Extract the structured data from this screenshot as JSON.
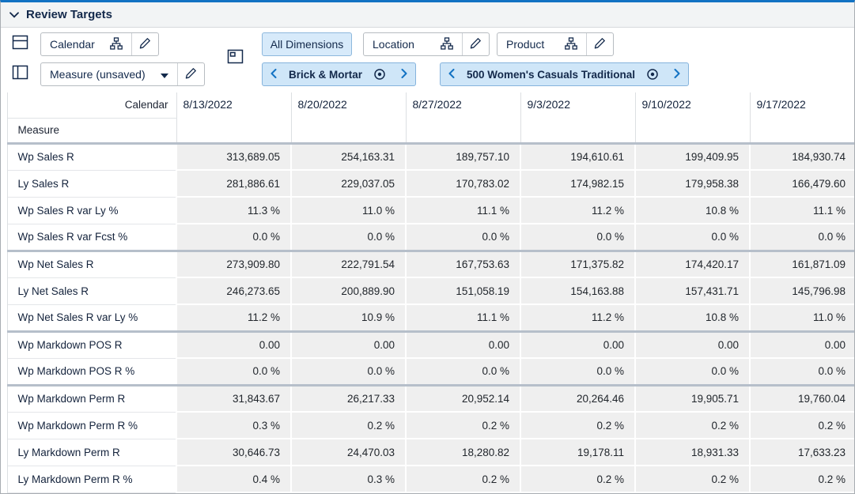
{
  "titlebar": {
    "title": "Review Targets"
  },
  "toolbar": {
    "calendar_label": "Calendar",
    "measure_label": "Measure (unsaved)",
    "all_dimensions_label": "All Dimensions",
    "location_label": "Location",
    "product_label": "Product"
  },
  "nav": {
    "location_context": "Brick & Mortar",
    "product_context": "500 Women's Casuals Traditional"
  },
  "grid": {
    "column_dimension": "Calendar",
    "row_dimension": "Measure",
    "columns": [
      "8/13/2022",
      "8/20/2022",
      "8/27/2022",
      "9/3/2022",
      "9/10/2022",
      "9/17/2022"
    ],
    "rows": [
      {
        "label": "Wp Sales R",
        "sep": false,
        "values": [
          "313,689.05",
          "254,163.31",
          "189,757.10",
          "194,610.61",
          "199,409.95",
          "184,930.74"
        ]
      },
      {
        "label": "Ly Sales R",
        "sep": false,
        "values": [
          "281,886.61",
          "229,037.05",
          "170,783.02",
          "174,982.15",
          "179,958.38",
          "166,479.60"
        ]
      },
      {
        "label": "Wp Sales R var Ly %",
        "sep": false,
        "values": [
          "11.3 %",
          "11.0 %",
          "11.1 %",
          "11.2 %",
          "10.8 %",
          "11.1 %"
        ]
      },
      {
        "label": "Wp Sales R var Fcst %",
        "sep": false,
        "values": [
          "0.0 %",
          "0.0 %",
          "0.0 %",
          "0.0 %",
          "0.0 %",
          "0.0 %"
        ]
      },
      {
        "label": "Wp Net Sales R",
        "sep": true,
        "values": [
          "273,909.80",
          "222,791.54",
          "167,753.63",
          "171,375.82",
          "174,420.17",
          "161,871.09"
        ]
      },
      {
        "label": "Ly Net Sales R",
        "sep": false,
        "values": [
          "246,273.65",
          "200,889.90",
          "151,058.19",
          "154,163.88",
          "157,431.71",
          "145,796.98"
        ]
      },
      {
        "label": "Wp Net Sales R var Ly %",
        "sep": false,
        "values": [
          "11.2 %",
          "10.9 %",
          "11.1 %",
          "11.2 %",
          "10.8 %",
          "11.0 %"
        ]
      },
      {
        "label": "Wp Markdown POS R",
        "sep": true,
        "values": [
          "0.00",
          "0.00",
          "0.00",
          "0.00",
          "0.00",
          "0.00"
        ]
      },
      {
        "label": "Wp Markdown POS R %",
        "sep": false,
        "values": [
          "0.0 %",
          "0.0 %",
          "0.0 %",
          "0.0 %",
          "0.0 %",
          "0.0 %"
        ]
      },
      {
        "label": "Wp Markdown Perm R",
        "sep": true,
        "values": [
          "31,843.67",
          "26,217.33",
          "20,952.14",
          "20,264.46",
          "19,905.71",
          "19,760.04"
        ]
      },
      {
        "label": "Wp Markdown Perm R %",
        "sep": false,
        "values": [
          "0.3 %",
          "0.2 %",
          "0.2 %",
          "0.2 %",
          "0.2 %",
          "0.2 %"
        ]
      },
      {
        "label": "Ly Markdown Perm R",
        "sep": false,
        "values": [
          "30,646.73",
          "24,470.03",
          "18,280.82",
          "19,178.11",
          "18,931.33",
          "17,633.23"
        ]
      },
      {
        "label": "Ly Markdown Perm R %",
        "sep": false,
        "values": [
          "0.4 %",
          "0.3 %",
          "0.2 %",
          "0.2 %",
          "0.2 %",
          "0.2 %"
        ]
      }
    ]
  },
  "icons": {
    "title_collapse": "chevron-down",
    "split_horizontal": "window-split-horizontal",
    "split_vertical": "window-split-vertical",
    "panel": "panel-window",
    "hierarchy": "org-chart",
    "edit": "pencil",
    "dropdown": "caret-down",
    "target": "bullseye",
    "prev": "chevron-left",
    "next": "chevron-right"
  },
  "colors": {
    "accent": "#1272c3",
    "selected_bg": "#d7eafa",
    "pill_bg": "#cfe6f8",
    "cell_bg": "#efefef",
    "separator": "#b6bfca",
    "text": "#13294b"
  }
}
